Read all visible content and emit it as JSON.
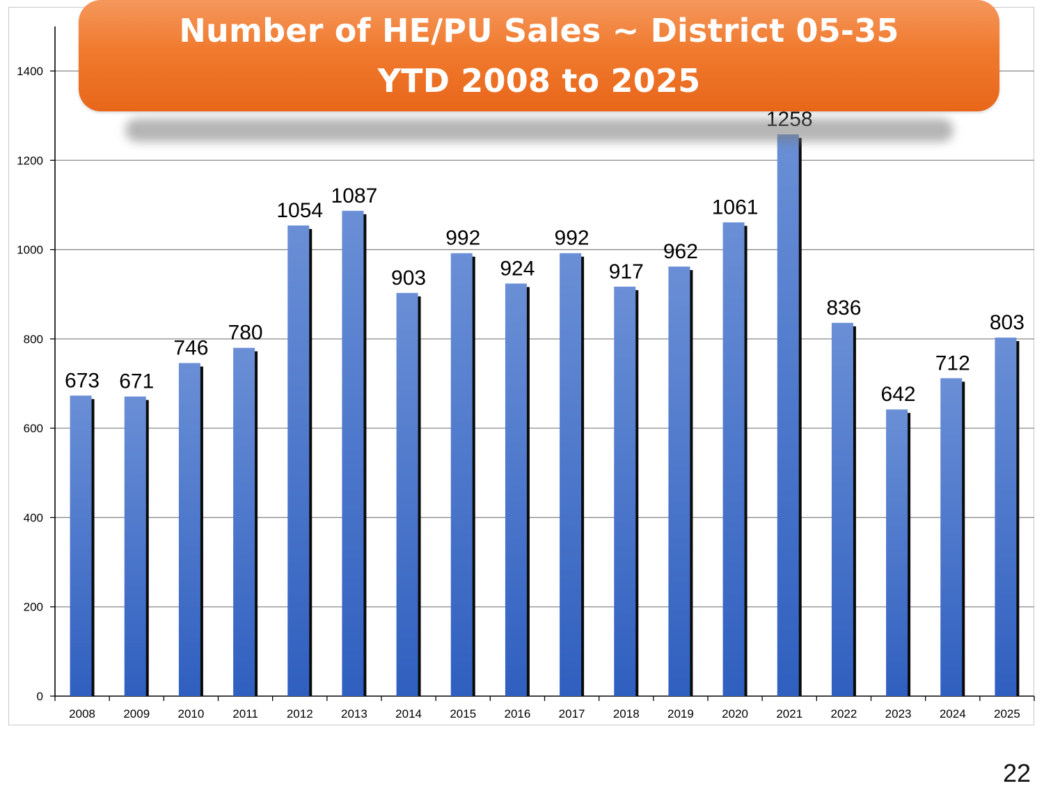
{
  "title": {
    "line1": "Number of HE/PU Sales ~ District 05-35",
    "line2": "YTD 2008 to 2025"
  },
  "page_number": "22",
  "colors": {
    "bar_top": "#6a8fd6",
    "bar_bottom": "#2f5fbf",
    "banner": "#f07a2e",
    "gridline": "#888888"
  },
  "chart_data": {
    "type": "bar",
    "title": "Number of HE/PU Sales ~ District 05-35 YTD 2008 to 2025",
    "categories": [
      "2008",
      "2009",
      "2010",
      "2011",
      "2012",
      "2013",
      "2014",
      "2015",
      "2016",
      "2017",
      "2018",
      "2019",
      "2020",
      "2021",
      "2022",
      "2023",
      "2024",
      "2025"
    ],
    "values": [
      673,
      671,
      746,
      780,
      1054,
      1087,
      903,
      992,
      924,
      992,
      917,
      962,
      1061,
      1258,
      836,
      642,
      712,
      803
    ],
    "ylim": [
      0,
      1400
    ],
    "yticks": [
      0,
      200,
      400,
      600,
      800,
      1000,
      1200,
      1400
    ],
    "xlabel": "",
    "ylabel": "",
    "grid": true,
    "data_labels": true,
    "legend": "none"
  }
}
